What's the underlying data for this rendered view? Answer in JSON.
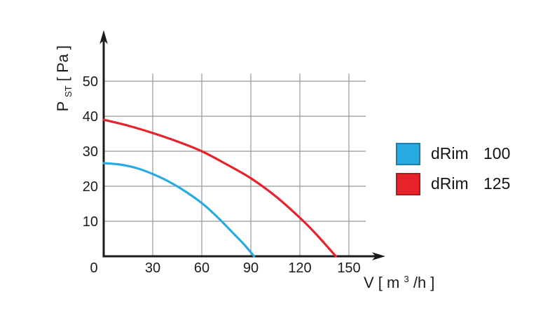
{
  "chart_data": {
    "type": "line",
    "title": "",
    "xlabel": "V [ m3/h ]",
    "ylabel": "P_ST [ Pa ]",
    "xlabel_parts": {
      "pre": "V [ m",
      "sup": "3",
      "post": "/h ]"
    },
    "ylabel_parts": {
      "main": "P",
      "sub": "ST",
      "rest": " [ Pa ]"
    },
    "xlim": [
      0,
      165
    ],
    "ylim": [
      0,
      55
    ],
    "xticks": [
      30,
      60,
      90,
      120,
      150
    ],
    "yticks": [
      10,
      20,
      30,
      40,
      50
    ],
    "origin_label": "0",
    "grid": true,
    "grid_color": "#989898",
    "axis_color": "#1b1b1b",
    "text_color": "#1b1b1b",
    "legend_position": "right of plot",
    "series": [
      {
        "name": "dRim 100",
        "model": "dRim",
        "size": "100",
        "color": "#29abe2",
        "swatch_border": "#1a7fb0",
        "x": [
          0,
          10,
          20,
          30,
          40,
          50,
          60,
          70,
          80,
          86,
          92
        ],
        "y": [
          26.6,
          26.2,
          25.2,
          23.5,
          21.3,
          18.5,
          15.2,
          11.0,
          6.2,
          3.3,
          0
        ]
      },
      {
        "name": "dRim 125",
        "model": "dRim",
        "size": "125",
        "color": "#e8222a",
        "swatch_border": "#b2171d",
        "x": [
          0,
          15,
          30,
          45,
          60,
          75,
          90,
          105,
          120,
          130,
          142
        ],
        "y": [
          39.0,
          37.3,
          35.2,
          32.8,
          30.0,
          26.3,
          22.3,
          17.2,
          11.0,
          6.3,
          0
        ]
      }
    ]
  }
}
